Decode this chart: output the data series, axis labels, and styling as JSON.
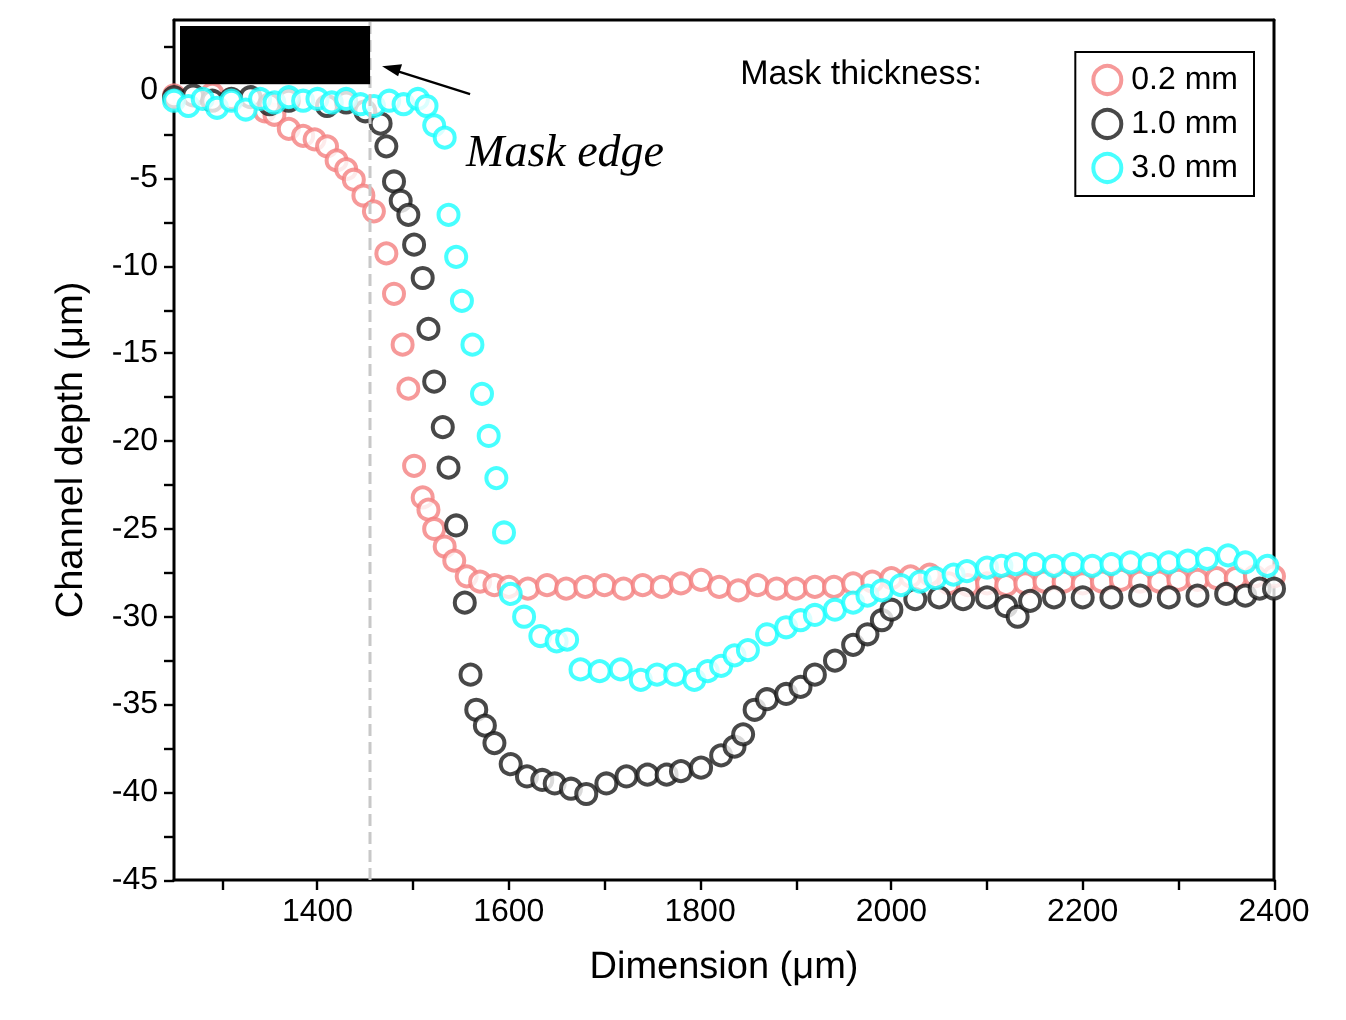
{
  "chart_data": {
    "type": "scatter",
    "xlabel": "Dimension (μm)",
    "ylabel": "Channel depth (μm)",
    "legend_title": "Mask thickness:",
    "xlim": [
      1250,
      2400
    ],
    "ylim": [
      -45,
      4
    ],
    "xticks": [
      {
        "value": 1300,
        "label": null
      },
      1400,
      {
        "value": 1500,
        "label": null
      },
      1600,
      {
        "value": 1700,
        "label": null
      },
      1800,
      {
        "value": 1900,
        "label": null
      },
      2000,
      {
        "value": 2100,
        "label": null
      },
      2200,
      {
        "value": 2300,
        "label": null
      },
      2400
    ],
    "yticks": [
      -45,
      {
        "value": -42.5,
        "label": null
      },
      -40,
      {
        "value": -37.5,
        "label": null
      },
      -35,
      {
        "value": -32.5,
        "label": null
      },
      -30,
      {
        "value": -27.5,
        "label": null
      },
      -25,
      {
        "value": -22.5,
        "label": null
      },
      -20,
      {
        "value": -17.5,
        "label": null
      },
      -15,
      {
        "value": -12.5,
        "label": null
      },
      -10,
      {
        "value": -7.5,
        "label": null
      },
      -5,
      {
        "value": -2.5,
        "label": null
      },
      0,
      {
        "value": 2.5,
        "label": null
      }
    ],
    "grid": false,
    "legend": "top right",
    "marker": "circle",
    "ref_lines": [
      {
        "axis": "x",
        "value": 1455,
        "color": "#c8c8c8",
        "line_style": "dashed"
      }
    ],
    "annotations": [
      {
        "text": "Mask edge",
        "x": 1455,
        "y": 0
      }
    ],
    "series": [
      {
        "name": "0.2 mm",
        "color": "#f47f7f",
        "x": [
          1250,
          1270,
          1290,
          1310,
          1330,
          1345,
          1355,
          1370,
          1385,
          1397,
          1410,
          1420,
          1430,
          1438,
          1448,
          1459,
          1472,
          1480,
          1489,
          1495,
          1501,
          1510,
          1516,
          1522,
          1533,
          1543,
          1556,
          1570,
          1585,
          1600,
          1620,
          1640,
          1660,
          1680,
          1700,
          1720,
          1740,
          1760,
          1780,
          1801,
          1820,
          1840,
          1860,
          1880,
          1900,
          1920,
          1940,
          1960,
          1980,
          2000,
          2020,
          2040,
          2060,
          2080,
          2100,
          2120,
          2140,
          2160,
          2180,
          2200,
          2220,
          2240,
          2260,
          2280,
          2300,
          2320,
          2340,
          2360,
          2380,
          2400
        ],
        "values": [
          -0.3,
          null,
          -0.2,
          null,
          null,
          -1.2,
          -1.4,
          -2.2,
          -2.6,
          -2.8,
          -3.2,
          -4,
          -4.5,
          -5.1,
          -6,
          -6.9,
          -9.3,
          -11.6,
          -14.5,
          -17,
          -21.4,
          -23.2,
          -23.9,
          -25,
          -26,
          -26.8,
          -27.7,
          -28,
          -28.2,
          -28.3,
          -28.4,
          -28.2,
          -28.4,
          -28.3,
          -28.2,
          -28.4,
          -28.2,
          -28.3,
          -28.1,
          -27.9,
          -28.3,
          -28.5,
          -28.2,
          -28.4,
          -28.4,
          -28.3,
          -28.3,
          -28.1,
          -28,
          -27.8,
          -27.7,
          -27.6,
          -28.1,
          -28.2,
          -28.1,
          -28.2,
          -28.1,
          -28,
          -28,
          -28.1,
          -28,
          -27.9,
          -28,
          -28,
          -27.9,
          -27.9,
          -27.8,
          -27.8,
          -27.7,
          -27.7
        ]
      },
      {
        "name": "1.0 mm",
        "color": "#1a1a1a",
        "x": [
          1250,
          1270,
          1290,
          1310,
          1330,
          1350,
          1370,
          1390,
          1410,
          1430,
          1450,
          1466,
          1472,
          1480,
          1487,
          1495,
          1501,
          1510,
          1516,
          1522,
          1531,
          1537,
          1545,
          1554,
          1560,
          1566,
          1575,
          1585,
          1602,
          1619,
          1635,
          1648,
          1665,
          1681,
          1702,
          1723,
          1745,
          1765,
          1780,
          1801,
          1822,
          1836,
          1845,
          1857,
          1870,
          1890,
          1905,
          1920,
          1941,
          1960,
          1975,
          1990,
          2000,
          2025,
          2050,
          2075,
          2100,
          2120,
          2132,
          2145,
          2170,
          2200,
          2230,
          2260,
          2290,
          2320,
          2350,
          2370,
          2385,
          2400
        ],
        "values": [
          -0.4,
          -0.3,
          -0.6,
          -0.5,
          -0.4,
          -0.8,
          -0.6,
          null,
          -0.9,
          -0.7,
          -1.2,
          -1.9,
          -3.2,
          -5.2,
          -6.3,
          -7.1,
          -8.8,
          -10.7,
          -13.6,
          -16.6,
          -19.2,
          -21.5,
          -24.8,
          -29.2,
          -33.3,
          -35.3,
          -36.2,
          -37.2,
          -38.4,
          -39.1,
          -39.3,
          -39.5,
          -39.8,
          -40.1,
          -39.5,
          -39.1,
          -39,
          -39,
          -38.8,
          -38.6,
          -37.9,
          -37.4,
          -36.7,
          -35.3,
          -34.7,
          -34.4,
          -34,
          -33.3,
          -32.5,
          -31.6,
          -31,
          -30.2,
          -29.6,
          -29,
          -28.9,
          -29,
          -28.9,
          -29.4,
          -30,
          -29.1,
          -28.9,
          -28.9,
          -28.9,
          -28.8,
          -28.9,
          -28.8,
          -28.7,
          -28.8,
          -28.4,
          -28.4
        ]
      },
      {
        "name": "3.0 mm",
        "color": "#19ffff",
        "x": [
          1250,
          1265,
          1280,
          1295,
          1310,
          1325,
          1340,
          1355,
          1370,
          1385,
          1400,
          1415,
          1430,
          1445,
          1459,
          1475,
          1490,
          1505,
          1514,
          1522,
          1533,
          1537,
          1545,
          1551,
          1562,
          1572,
          1579,
          1587,
          1595,
          1602,
          1616,
          1633,
          1650,
          1661,
          1675,
          1695,
          1717,
          1738,
          1755,
          1774,
          1794,
          1808,
          1822,
          1836,
          1850,
          1870,
          1890,
          1905,
          1920,
          1941,
          1960,
          1975,
          1990,
          2010,
          2030,
          2046,
          2065,
          2079,
          2100,
          2115,
          2130,
          2150,
          2170,
          2190,
          2210,
          2230,
          2250,
          2270,
          2290,
          2310,
          2330,
          2352,
          2370,
          2393
        ],
        "values": [
          -0.6,
          -0.9,
          -0.5,
          -1,
          -0.6,
          -1.1,
          -0.5,
          -0.7,
          -0.4,
          -0.6,
          -0.5,
          -0.7,
          -0.5,
          -0.8,
          -0.9,
          -0.6,
          -0.8,
          -0.5,
          -0.9,
          -2,
          -2.7,
          -7.1,
          -9.5,
          -12,
          -14.5,
          -17.3,
          -19.7,
          -22.1,
          -25.2,
          -28.7,
          -30,
          -31.1,
          -31.4,
          -31.3,
          -33,
          -33.1,
          -33,
          -33.6,
          -33.3,
          -33.3,
          -33.6,
          -33.1,
          -32.8,
          -32.2,
          -31.9,
          -31,
          -30.6,
          -30.2,
          -29.9,
          -29.6,
          -29.2,
          -28.8,
          -28.5,
          -28.2,
          -28,
          -27.8,
          -27.6,
          -27.4,
          -27.2,
          -27.1,
          -27,
          -27,
          -27.1,
          -27,
          -27.1,
          -27,
          -26.9,
          -27,
          -26.9,
          -26.8,
          -26.7,
          -26.5,
          -26.9,
          -27.1
        ]
      }
    ]
  }
}
